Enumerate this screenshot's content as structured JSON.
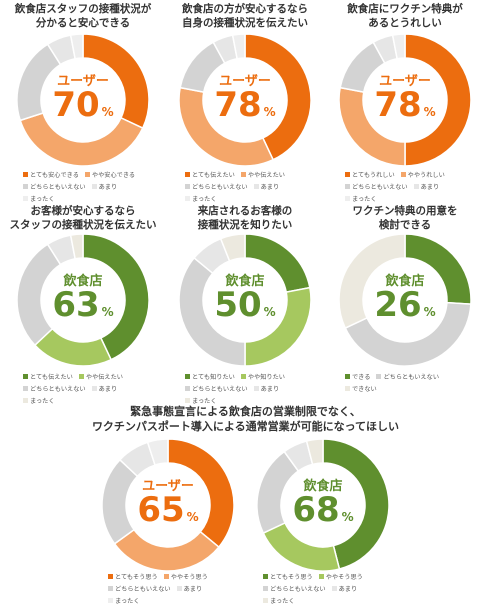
{
  "colors": {
    "orange_dark": "#ec6d0f",
    "orange_light": "#f4a66a",
    "green_dark": "#5f8f2e",
    "green_light": "#a6c85f",
    "gray_mid": "#d3d3d3",
    "gray_light": "#e6e6e6",
    "gray_lighter": "#eeeeee",
    "beige": "#ece9df"
  },
  "bottom_title": "緊急事態宣言による飲食店の営業制限でなく、\nワクチンパスポート導入による通常営業が可能になってほしい",
  "chart_data": [
    {
      "type": "pie",
      "title": "飲食店スタッフの接種状況が\n分かると安心できる",
      "center_label": "ユーザー",
      "headline_value": "70",
      "unit": "%",
      "theme": "orange",
      "slices": [
        {
          "label": "とても安心できる",
          "value": 32
        },
        {
          "label": "やや安心できる",
          "value": 38
        },
        {
          "label": "どちらともいえない",
          "value": 21
        },
        {
          "label": "あまり",
          "value": 6
        },
        {
          "label": "まったく",
          "value": 3
        }
      ]
    },
    {
      "type": "pie",
      "title": "飲食店の方が安心するなら\n自身の接種状況を伝えたい",
      "center_label": "ユーザー",
      "headline_value": "78",
      "unit": "%",
      "theme": "orange",
      "slices": [
        {
          "label": "とても伝えたい",
          "value": 43
        },
        {
          "label": "やや伝えたい",
          "value": 35
        },
        {
          "label": "どちらともいえない",
          "value": 14
        },
        {
          "label": "あまり",
          "value": 5
        },
        {
          "label": "まったく",
          "value": 3
        }
      ]
    },
    {
      "type": "pie",
      "title": "飲食店にワクチン特典が\nあるとうれしい",
      "center_label": "ユーザー",
      "headline_value": "78",
      "unit": "%",
      "theme": "orange",
      "slices": [
        {
          "label": "とてもうれしい",
          "value": 50
        },
        {
          "label": "ややうれしい",
          "value": 28
        },
        {
          "label": "どちらともいえない",
          "value": 14
        },
        {
          "label": "あまり",
          "value": 5
        },
        {
          "label": "まったく",
          "value": 3
        }
      ]
    },
    {
      "type": "pie",
      "title": "お客様が安心するなら\nスタッフの接種状況を伝えたい",
      "center_label": "飲食店",
      "headline_value": "63",
      "unit": "%",
      "theme": "green",
      "slices": [
        {
          "label": "とても伝えたい",
          "value": 43
        },
        {
          "label": "やや伝えたい",
          "value": 20
        },
        {
          "label": "どちらともいえない",
          "value": 28
        },
        {
          "label": "あまり",
          "value": 6
        },
        {
          "label": "まったく",
          "value": 3
        }
      ]
    },
    {
      "type": "pie",
      "title": "来店されるお客様の\n接種状況を知りたい",
      "center_label": "飲食店",
      "headline_value": "50",
      "unit": "%",
      "theme": "green",
      "slices": [
        {
          "label": "とても知りたい",
          "value": 22
        },
        {
          "label": "やや知りたい",
          "value": 28
        },
        {
          "label": "どちらともいえない",
          "value": 36
        },
        {
          "label": "あまり",
          "value": 8
        },
        {
          "label": "まったく",
          "value": 6
        }
      ]
    },
    {
      "type": "pie",
      "title": "ワクチン特典の用意を\n検討できる",
      "center_label": "飲食店",
      "headline_value": "26",
      "unit": "%",
      "theme": "green3",
      "slices": [
        {
          "label": "できる",
          "value": 26
        },
        {
          "label": "どちらともいえない",
          "value": 42
        },
        {
          "label": "できない",
          "value": 32
        }
      ]
    },
    {
      "type": "pie",
      "title": "",
      "center_label": "ユーザー",
      "headline_value": "65",
      "unit": "%",
      "theme": "orange",
      "slices": [
        {
          "label": "とてもそう思う",
          "value": 36
        },
        {
          "label": "ややそう思う",
          "value": 29
        },
        {
          "label": "どちらともいえない",
          "value": 22
        },
        {
          "label": "あまり",
          "value": 8
        },
        {
          "label": "まったく",
          "value": 5
        }
      ]
    },
    {
      "type": "pie",
      "title": "",
      "center_label": "飲食店",
      "headline_value": "68",
      "unit": "%",
      "theme": "green",
      "slices": [
        {
          "label": "とてもそう思う",
          "value": 46
        },
        {
          "label": "ややそう思う",
          "value": 22
        },
        {
          "label": "どちらともいえない",
          "value": 22
        },
        {
          "label": "あまり",
          "value": 6
        },
        {
          "label": "まったく",
          "value": 4
        }
      ]
    }
  ]
}
